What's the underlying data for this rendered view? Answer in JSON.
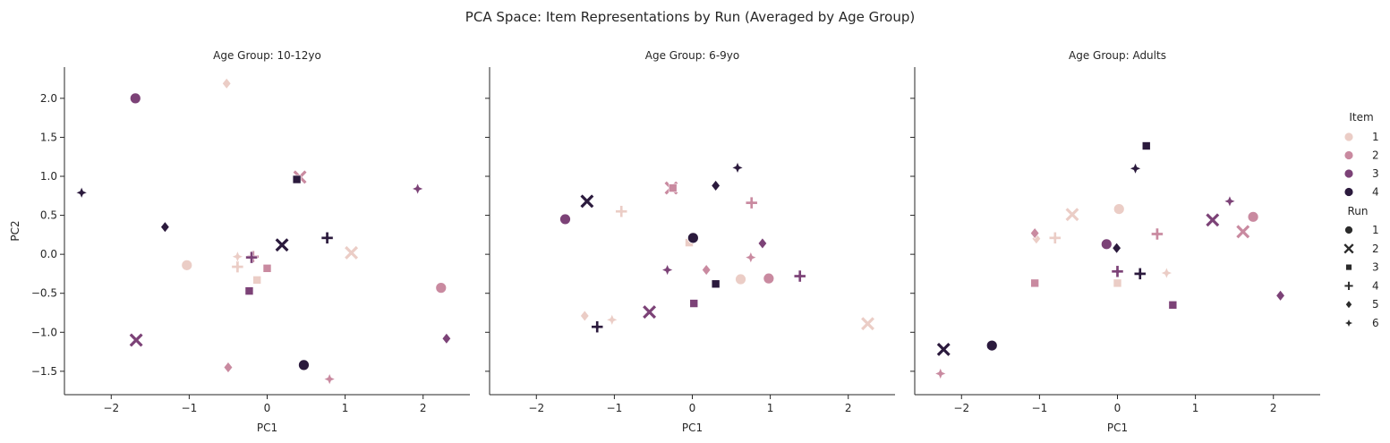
{
  "chart_data": {
    "type": "scatter",
    "title": "PCA Space: Item Representations by Run (Averaged by Age Group)",
    "xlabel": "PC1",
    "ylabel": "PC2",
    "xlim": [
      -2.6,
      2.6
    ],
    "ylim": [
      -1.8,
      2.4
    ],
    "xticks": [
      -2,
      -1,
      0,
      1,
      2
    ],
    "yticks": [
      -1.5,
      -1.0,
      -0.5,
      0.0,
      0.5,
      1.0,
      1.5,
      2.0
    ],
    "legend": {
      "placement": "right",
      "hue_title": "Item",
      "hue_levels": [
        "1",
        "2",
        "3",
        "4"
      ],
      "style_title": "Run",
      "style_levels": [
        "1",
        "2",
        "3",
        "4",
        "5",
        "6"
      ]
    },
    "item_colors": {
      "1": "#ebcdc6",
      "2": "#c98aa0",
      "3": "#7c4277",
      "4": "#2b1a3d"
    },
    "run_markers": {
      "1": "circle",
      "2": "x",
      "3": "square",
      "4": "plus",
      "5": "diamond",
      "6": "star"
    },
    "panels": [
      {
        "title": "Age Group: 10-12yo",
        "points": [
          {
            "item": 1,
            "run": 1,
            "x": -1.03,
            "y": -0.14
          },
          {
            "item": 1,
            "run": 2,
            "x": 1.08,
            "y": 0.02
          },
          {
            "item": 1,
            "run": 3,
            "x": -0.13,
            "y": -0.33
          },
          {
            "item": 1,
            "run": 4,
            "x": -0.38,
            "y": -0.16
          },
          {
            "item": 1,
            "run": 5,
            "x": -0.52,
            "y": 2.19
          },
          {
            "item": 1,
            "run": 6,
            "x": -0.38,
            "y": -0.03
          },
          {
            "item": 2,
            "run": 1,
            "x": 2.23,
            "y": -0.43
          },
          {
            "item": 2,
            "run": 2,
            "x": 0.42,
            "y": 0.99
          },
          {
            "item": 2,
            "run": 3,
            "x": 0.0,
            "y": -0.18
          },
          {
            "item": 2,
            "run": 4,
            "x": -0.18,
            "y": -0.03
          },
          {
            "item": 2,
            "run": 5,
            "x": -0.5,
            "y": -1.45
          },
          {
            "item": 2,
            "run": 6,
            "x": 0.8,
            "y": -1.6
          },
          {
            "item": 3,
            "run": 1,
            "x": -1.69,
            "y": 2.0
          },
          {
            "item": 3,
            "run": 2,
            "x": -1.68,
            "y": -1.1
          },
          {
            "item": 3,
            "run": 3,
            "x": -0.23,
            "y": -0.47
          },
          {
            "item": 3,
            "run": 4,
            "x": -0.2,
            "y": -0.04
          },
          {
            "item": 3,
            "run": 5,
            "x": 2.3,
            "y": -1.08
          },
          {
            "item": 3,
            "run": 6,
            "x": 1.93,
            "y": 0.84
          },
          {
            "item": 4,
            "run": 1,
            "x": 0.47,
            "y": -1.42
          },
          {
            "item": 4,
            "run": 2,
            "x": 0.19,
            "y": 0.12
          },
          {
            "item": 4,
            "run": 3,
            "x": 0.38,
            "y": 0.96
          },
          {
            "item": 4,
            "run": 4,
            "x": 0.77,
            "y": 0.21
          },
          {
            "item": 4,
            "run": 5,
            "x": -1.31,
            "y": 0.35
          },
          {
            "item": 4,
            "run": 6,
            "x": -2.38,
            "y": 0.79
          }
        ]
      },
      {
        "title": "Age Group: 6-9yo",
        "points": [
          {
            "item": 1,
            "run": 1,
            "x": 0.62,
            "y": -0.32
          },
          {
            "item": 1,
            "run": 2,
            "x": 2.25,
            "y": -0.89
          },
          {
            "item": 1,
            "run": 3,
            "x": -0.04,
            "y": 0.15
          },
          {
            "item": 1,
            "run": 4,
            "x": -0.91,
            "y": 0.55
          },
          {
            "item": 1,
            "run": 5,
            "x": -1.38,
            "y": -0.79
          },
          {
            "item": 1,
            "run": 6,
            "x": -1.03,
            "y": -0.84
          },
          {
            "item": 2,
            "run": 1,
            "x": 0.98,
            "y": -0.31
          },
          {
            "item": 2,
            "run": 2,
            "x": -0.27,
            "y": 0.85
          },
          {
            "item": 2,
            "run": 3,
            "x": -0.25,
            "y": 0.85
          },
          {
            "item": 2,
            "run": 4,
            "x": 0.76,
            "y": 0.66
          },
          {
            "item": 2,
            "run": 5,
            "x": 0.18,
            "y": -0.2
          },
          {
            "item": 2,
            "run": 6,
            "x": 0.75,
            "y": -0.04
          },
          {
            "item": 3,
            "run": 1,
            "x": -1.63,
            "y": 0.45
          },
          {
            "item": 3,
            "run": 2,
            "x": -0.55,
            "y": -0.74
          },
          {
            "item": 3,
            "run": 3,
            "x": 0.02,
            "y": -0.63
          },
          {
            "item": 3,
            "run": 4,
            "x": 1.38,
            "y": -0.28
          },
          {
            "item": 3,
            "run": 5,
            "x": 0.9,
            "y": 0.14
          },
          {
            "item": 3,
            "run": 6,
            "x": -0.32,
            "y": -0.2
          },
          {
            "item": 4,
            "run": 1,
            "x": 0.01,
            "y": 0.21
          },
          {
            "item": 4,
            "run": 2,
            "x": -1.35,
            "y": 0.68
          },
          {
            "item": 4,
            "run": 3,
            "x": 0.3,
            "y": -0.38
          },
          {
            "item": 4,
            "run": 4,
            "x": -1.22,
            "y": -0.93
          },
          {
            "item": 4,
            "run": 5,
            "x": 0.3,
            "y": 0.88
          },
          {
            "item": 4,
            "run": 6,
            "x": 0.58,
            "y": 1.11
          }
        ]
      },
      {
        "title": "Age Group: Adults",
        "points": [
          {
            "item": 1,
            "run": 1,
            "x": 0.02,
            "y": 0.58
          },
          {
            "item": 1,
            "run": 2,
            "x": -0.58,
            "y": 0.51
          },
          {
            "item": 1,
            "run": 3,
            "x": 0.0,
            "y": -0.37
          },
          {
            "item": 1,
            "run": 4,
            "x": -0.8,
            "y": 0.21
          },
          {
            "item": 1,
            "run": 5,
            "x": -1.04,
            "y": 0.2
          },
          {
            "item": 1,
            "run": 6,
            "x": 0.63,
            "y": -0.24
          },
          {
            "item": 2,
            "run": 1,
            "x": 1.74,
            "y": 0.48
          },
          {
            "item": 2,
            "run": 2,
            "x": 1.61,
            "y": 0.29
          },
          {
            "item": 2,
            "run": 3,
            "x": -1.06,
            "y": -0.37
          },
          {
            "item": 2,
            "run": 4,
            "x": 0.51,
            "y": 0.26
          },
          {
            "item": 2,
            "run": 5,
            "x": -1.06,
            "y": 0.27
          },
          {
            "item": 2,
            "run": 6,
            "x": -2.27,
            "y": -1.53
          },
          {
            "item": 3,
            "run": 1,
            "x": -0.14,
            "y": 0.13
          },
          {
            "item": 3,
            "run": 2,
            "x": 1.22,
            "y": 0.44
          },
          {
            "item": 3,
            "run": 3,
            "x": 0.71,
            "y": -0.65
          },
          {
            "item": 3,
            "run": 4,
            "x": 0.0,
            "y": -0.22
          },
          {
            "item": 3,
            "run": 5,
            "x": 2.09,
            "y": -0.53
          },
          {
            "item": 3,
            "run": 6,
            "x": 1.44,
            "y": 0.68
          },
          {
            "item": 4,
            "run": 1,
            "x": -1.61,
            "y": -1.17
          },
          {
            "item": 4,
            "run": 2,
            "x": -2.23,
            "y": -1.22
          },
          {
            "item": 4,
            "run": 3,
            "x": 0.37,
            "y": 1.39
          },
          {
            "item": 4,
            "run": 4,
            "x": 0.29,
            "y": -0.25
          },
          {
            "item": 4,
            "run": 5,
            "x": -0.01,
            "y": 0.08
          },
          {
            "item": 4,
            "run": 6,
            "x": 0.23,
            "y": 1.1
          }
        ]
      }
    ]
  }
}
